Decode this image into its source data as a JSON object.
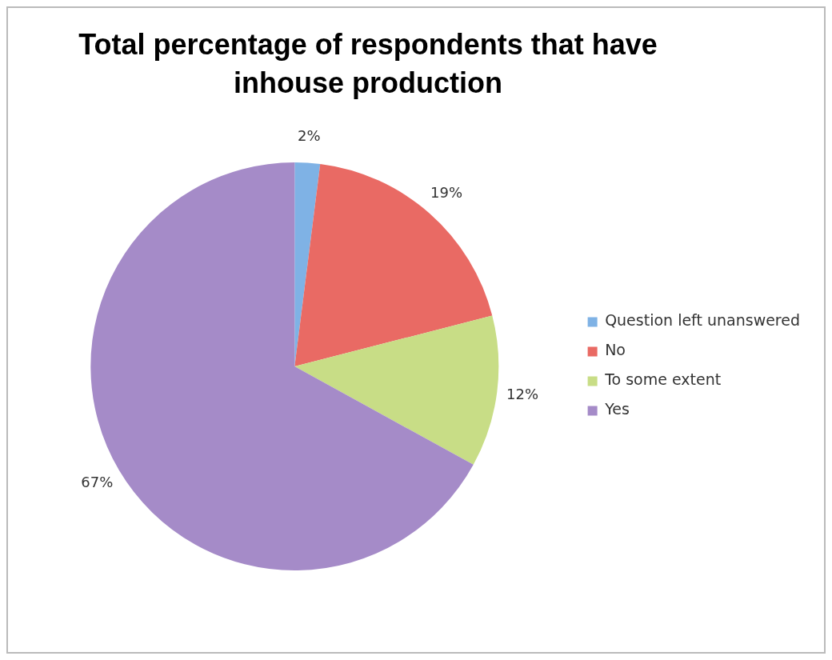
{
  "chart_data": {
    "type": "pie",
    "title": "Total percentage of respondents that have inhouse production",
    "categories": [
      "Question left unanswered",
      "No",
      "To some extent",
      "Yes"
    ],
    "values": [
      2,
      19,
      12,
      67
    ],
    "colors": [
      "#7fb2e5",
      "#e96a64",
      "#c8dd86",
      "#a58bc8"
    ],
    "value_labels": [
      "2%",
      "19%",
      "12%",
      "67%"
    ],
    "legend": "right"
  }
}
